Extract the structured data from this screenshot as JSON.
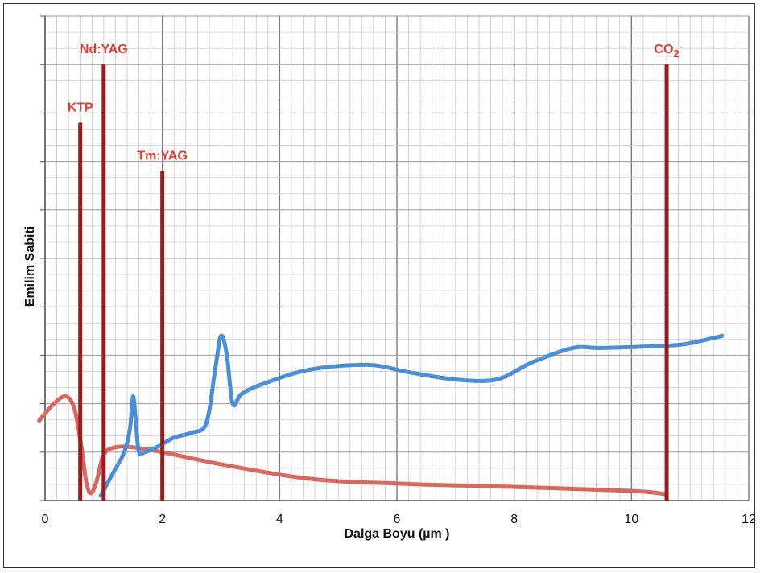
{
  "chart_data": {
    "type": "line",
    "title": "",
    "xlabel": "Dalga Boyu (µm )",
    "ylabel": "Emilim Sabiti",
    "xlim": [
      0,
      12
    ],
    "ylim": [
      0,
      1
    ],
    "x_ticks": [
      "0",
      "2",
      "4",
      "6",
      "8",
      "10",
      "12"
    ],
    "grid": true,
    "series": [
      {
        "color": "#d9685f",
        "x": [
          -0.1,
          0.15,
          0.35,
          0.5,
          0.62,
          0.7,
          0.78,
          0.88,
          1.0,
          1.2,
          1.5,
          2.0,
          3.0,
          4.5,
          6.0,
          8.0,
          10.0,
          10.6
        ],
        "y": [
          0.165,
          0.2,
          0.215,
          0.19,
          0.11,
          0.04,
          0.015,
          0.04,
          0.095,
          0.11,
          0.11,
          0.1,
          0.075,
          0.045,
          0.035,
          0.028,
          0.02,
          0.013
        ]
      },
      {
        "color": "#4a90d9",
        "x": [
          0.95,
          1.15,
          1.35,
          1.45,
          1.5,
          1.55,
          1.6,
          1.7,
          1.9,
          2.2,
          2.5,
          2.75,
          2.9,
          3.0,
          3.1,
          3.2,
          3.35,
          3.7,
          4.5,
          5.5,
          6.2,
          7.0,
          7.7,
          8.3,
          9.0,
          9.5,
          10.6,
          11.0,
          11.55
        ],
        "y": [
          0.01,
          0.055,
          0.1,
          0.15,
          0.215,
          0.16,
          0.1,
          0.1,
          0.11,
          0.13,
          0.14,
          0.16,
          0.27,
          0.34,
          0.3,
          0.2,
          0.22,
          0.24,
          0.27,
          0.28,
          0.265,
          0.25,
          0.25,
          0.285,
          0.315,
          0.315,
          0.32,
          0.325,
          0.34
        ]
      }
    ],
    "laser_lines": [
      {
        "label": "KTP",
        "x": 0.6,
        "top": 0.78
      },
      {
        "label": "Nd:YAG",
        "x": 1.0,
        "top": 0.9
      },
      {
        "label": "Tm:YAG",
        "x": 2.0,
        "top": 0.68
      },
      {
        "label": "CO",
        "sub": "2",
        "x": 10.6,
        "top": 0.9
      }
    ],
    "colors": {
      "laser_line": "#9b1c1c",
      "laser_text": "#e8392e",
      "grid": "#c8c8c8",
      "major_grid": "#7a7a7a"
    }
  }
}
